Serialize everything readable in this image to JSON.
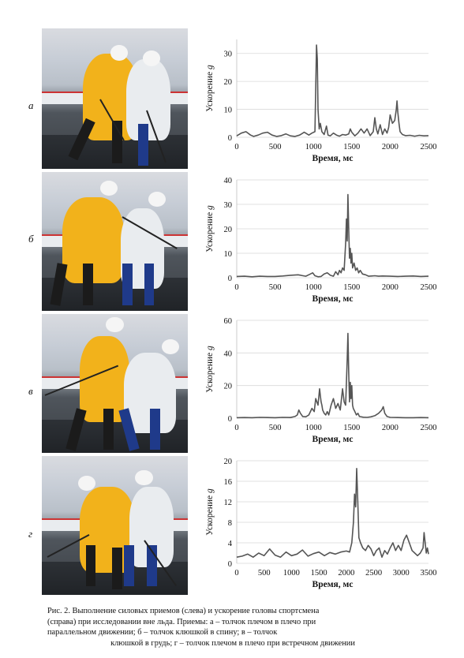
{
  "caption": {
    "line1": "Рис. 2. Выполнение силовых приемов (слева) и ускорение головы спортсмена",
    "line2": "(справа) при исследовании вне льда. Приемы: а – толчок плечом в плечо при",
    "line3": "параллельном движении; б – толчок клюшкой в спину; в – толчок",
    "line4": "клюшкой в грудь; г – толчок плечом в плечо при встречном движении"
  },
  "colors": {
    "line": "#555555",
    "grid": "#d9d9d9",
    "axis": "#bfbfbf",
    "jersey_yellow": "#f2b21b",
    "jersey_white": "#e9ecef"
  },
  "rows": [
    {
      "letter": "а"
    },
    {
      "letter": "б"
    },
    {
      "letter": "в"
    },
    {
      "letter": "г"
    }
  ],
  "chart_data": [
    {
      "type": "line",
      "xlabel": "Время, мс",
      "ylabel": "Ускорение g",
      "xlim": [
        0,
        2500
      ],
      "ylim": [
        0,
        35
      ],
      "xticks": [
        0,
        500,
        1000,
        1500,
        2000,
        2500
      ],
      "yticks": [
        0,
        10,
        20,
        30
      ],
      "grid": true,
      "x": [
        0,
        60,
        120,
        180,
        220,
        280,
        340,
        400,
        460,
        520,
        580,
        640,
        700,
        760,
        820,
        880,
        940,
        980,
        1020,
        1040,
        1050,
        1060,
        1075,
        1090,
        1110,
        1140,
        1170,
        1190,
        1220,
        1260,
        1300,
        1340,
        1380,
        1420,
        1460,
        1480,
        1500,
        1540,
        1580,
        1620,
        1660,
        1700,
        1740,
        1780,
        1800,
        1820,
        1840,
        1870,
        1900,
        1930,
        1960,
        1980,
        2000,
        2030,
        2060,
        2080,
        2090,
        2100,
        2115,
        2130,
        2160,
        2200,
        2260,
        2320,
        2380,
        2440,
        2500
      ],
      "y": [
        0.5,
        1.5,
        2,
        0.8,
        0.3,
        0.8,
        1.5,
        1.8,
        0.8,
        0.3,
        0.6,
        1.2,
        0.5,
        0.3,
        0.8,
        1.8,
        0.8,
        1.5,
        2,
        33,
        28,
        10,
        3,
        5,
        2,
        1,
        4,
        0.8,
        0.5,
        1.5,
        0.8,
        0.4,
        1,
        0.8,
        1.2,
        3,
        1.8,
        0.5,
        1.5,
        3,
        1.5,
        3,
        0.6,
        2,
        7,
        3,
        1.2,
        4.5,
        1,
        3,
        1.5,
        3.5,
        8,
        5,
        6,
        10,
        13,
        9,
        5,
        2,
        1,
        0.6,
        0.7,
        0.4,
        0.7,
        0.5,
        0.6
      ]
    },
    {
      "type": "line",
      "xlabel": "Время, мс",
      "ylabel": "Ускорение g",
      "xlim": [
        0,
        2500
      ],
      "ylim": [
        0,
        40
      ],
      "xticks": [
        0,
        500,
        1000,
        1500,
        2000,
        2500
      ],
      "yticks": [
        0,
        10,
        20,
        30,
        40
      ],
      "grid": true,
      "x": [
        0,
        100,
        200,
        300,
        400,
        500,
        600,
        700,
        800,
        900,
        960,
        990,
        1020,
        1060,
        1100,
        1140,
        1180,
        1220,
        1260,
        1290,
        1320,
        1340,
        1360,
        1380,
        1400,
        1420,
        1430,
        1440,
        1450,
        1460,
        1470,
        1480,
        1490,
        1500,
        1510,
        1530,
        1550,
        1570,
        1590,
        1610,
        1640,
        1680,
        1720,
        1760,
        1800,
        1850,
        1900,
        2000,
        2100,
        2200,
        2300,
        2400,
        2500
      ],
      "y": [
        0.5,
        0.6,
        0.4,
        0.6,
        0.5,
        0.5,
        0.7,
        1,
        1.2,
        0.6,
        1.5,
        2,
        0.8,
        0.4,
        0.5,
        1.5,
        2,
        1,
        0.6,
        2.5,
        1.2,
        3,
        2,
        4,
        3,
        14,
        24,
        15,
        34,
        20,
        8,
        12,
        6,
        10,
        4,
        6,
        3,
        4,
        2,
        3,
        1.5,
        1.2,
        0.6,
        0.7,
        0.8,
        0.6,
        0.7,
        0.6,
        0.5,
        0.6,
        0.7,
        0.5,
        0.6
      ]
    },
    {
      "type": "line",
      "xlabel": "Время, мс",
      "ylabel": "Ускорение g",
      "xlim": [
        0,
        2500
      ],
      "ylim": [
        0,
        60
      ],
      "xticks": [
        0,
        500,
        1000,
        1500,
        2000,
        2500
      ],
      "yticks": [
        0,
        20,
        40,
        60
      ],
      "grid": true,
      "x": [
        0,
        100,
        200,
        300,
        400,
        500,
        600,
        700,
        760,
        790,
        810,
        830,
        860,
        900,
        940,
        980,
        1010,
        1030,
        1060,
        1080,
        1090,
        1100,
        1110,
        1120,
        1140,
        1160,
        1180,
        1200,
        1230,
        1260,
        1290,
        1320,
        1350,
        1380,
        1400,
        1420,
        1440,
        1450,
        1460,
        1470,
        1480,
        1490,
        1500,
        1510,
        1520,
        1540,
        1560,
        1580,
        1600,
        1650,
        1700,
        1750,
        1800,
        1850,
        1890,
        1910,
        1930,
        1960,
        2000,
        2100,
        2200,
        2300,
        2400,
        2500
      ],
      "y": [
        0.3,
        0.4,
        0.3,
        0.5,
        0.4,
        0.3,
        0.5,
        0.4,
        1,
        2,
        5,
        3,
        1,
        0.8,
        2,
        6,
        4,
        12,
        8,
        18,
        14,
        10,
        8,
        5,
        3,
        2,
        4,
        2,
        8,
        12,
        6,
        9,
        5,
        18,
        10,
        8,
        36,
        52,
        28,
        10,
        22,
        12,
        20,
        8,
        6,
        4,
        2,
        3,
        1,
        0.6,
        0.5,
        0.8,
        1.5,
        3,
        5,
        7,
        3,
        1,
        0.5,
        0.4,
        0.3,
        0.3,
        0.4,
        0.3
      ]
    },
    {
      "type": "line",
      "xlabel": "Время, мс",
      "ylabel": "Ускорение g",
      "xlim": [
        0,
        3500
      ],
      "ylim": [
        0,
        20
      ],
      "xticks": [
        0,
        500,
        1000,
        1500,
        2000,
        2500,
        3000,
        3500
      ],
      "yticks": [
        0,
        4,
        8,
        12,
        16,
        20
      ],
      "grid": true,
      "x": [
        0,
        100,
        200,
        300,
        400,
        500,
        600,
        700,
        800,
        900,
        1000,
        1100,
        1200,
        1300,
        1400,
        1500,
        1600,
        1700,
        1800,
        1900,
        2000,
        2060,
        2100,
        2130,
        2150,
        2170,
        2190,
        2210,
        2230,
        2260,
        2300,
        2350,
        2400,
        2450,
        2500,
        2550,
        2600,
        2650,
        2700,
        2750,
        2800,
        2850,
        2900,
        2950,
        3000,
        3050,
        3100,
        3150,
        3200,
        3250,
        3300,
        3350,
        3400,
        3420,
        3440,
        3460,
        3480,
        3500
      ],
      "y": [
        1.2,
        1.4,
        1.8,
        1.2,
        2,
        1.5,
        2.8,
        1.6,
        1.2,
        2.2,
        1.5,
        1.8,
        2.6,
        1.4,
        1.9,
        2.2,
        1.5,
        2.1,
        1.8,
        2.2,
        2.4,
        2.2,
        4,
        8,
        13.5,
        11,
        18.5,
        12,
        5,
        4,
        3,
        2.5,
        3.5,
        2.8,
        1.5,
        2.5,
        3,
        1.2,
        2.5,
        1.8,
        3,
        4,
        2.5,
        3.5,
        2.5,
        4.5,
        5.5,
        4,
        2.5,
        2,
        1.5,
        2,
        3,
        6,
        4,
        2,
        3,
        1.8
      ]
    }
  ]
}
